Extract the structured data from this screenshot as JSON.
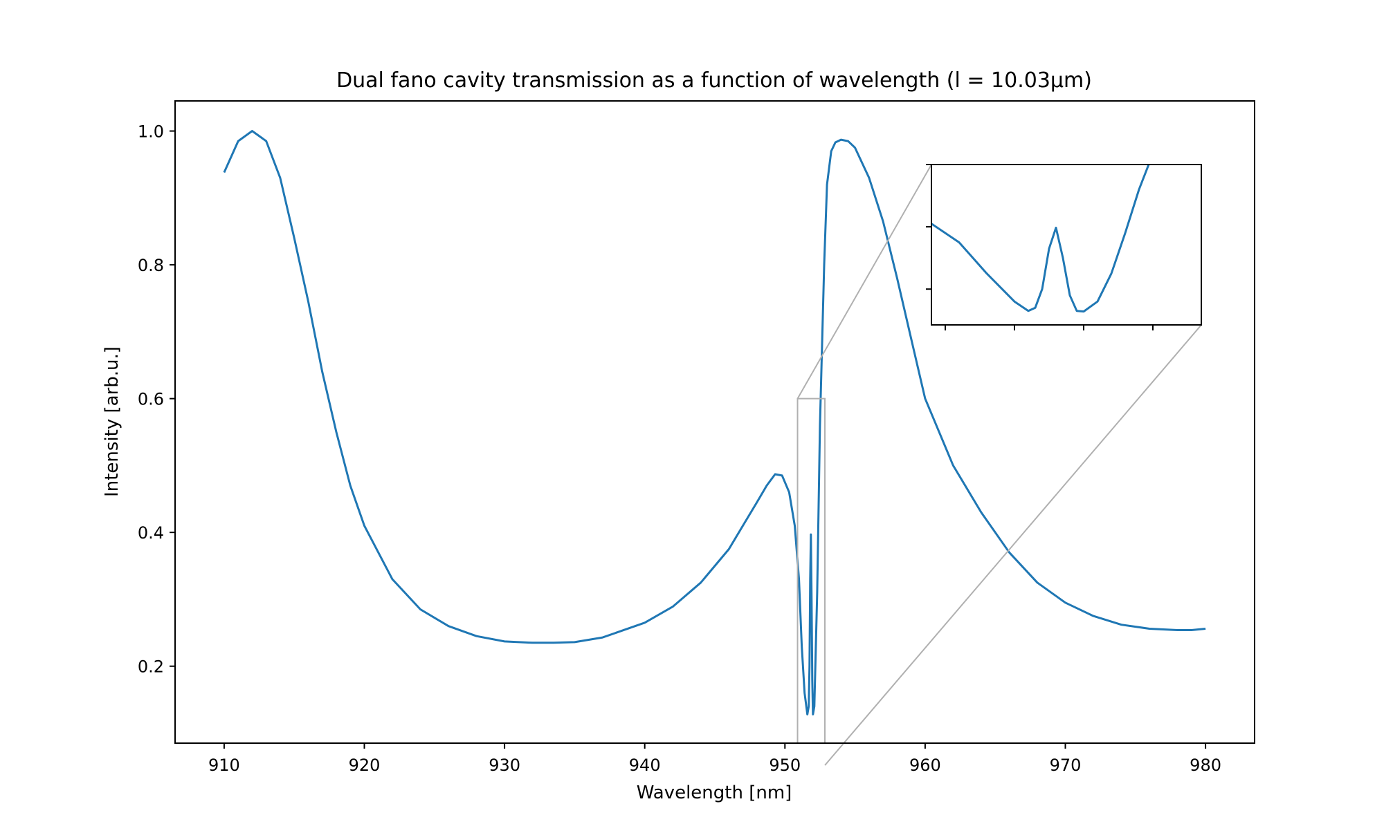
{
  "chart_data": {
    "type": "line",
    "title": "Dual fano cavity transmission as a function of wavelength (l = 10.03µm)",
    "xlabel": "Wavelength [nm]",
    "ylabel": "Intensity [arb.u.]",
    "xlim": [
      906.5,
      983.5
    ],
    "ylim": [
      0.085,
      1.045
    ],
    "xticks": [
      910,
      920,
      930,
      940,
      950,
      960,
      970,
      980
    ],
    "yticks": [
      0.2,
      0.4,
      0.6,
      0.8,
      1.0
    ],
    "xtick_labels": [
      "910",
      "920",
      "930",
      "940",
      "950",
      "960",
      "970",
      "980"
    ],
    "ytick_labels": [
      "0.2",
      "0.4",
      "0.6",
      "0.8",
      "1.0"
    ],
    "grid": false,
    "legend": "none",
    "series": [
      {
        "color": "#1f77b4",
        "x": [
          910,
          911,
          912,
          913,
          914,
          915,
          916,
          917,
          918,
          919,
          920,
          922,
          924,
          926,
          928,
          930,
          932,
          933.5,
          935,
          937,
          940,
          942,
          944,
          946,
          947,
          948,
          948.7,
          949.3,
          949.8,
          950.3,
          950.7,
          951.0,
          951.2,
          951.4,
          951.6,
          951.7,
          951.75,
          951.8,
          951.85,
          951.9,
          951.95,
          952.0,
          952.1,
          952.3,
          952.5,
          952.8,
          953.0,
          953.3,
          953.6,
          954.0,
          954.5,
          955.0,
          956,
          957,
          958,
          959,
          960,
          962,
          964,
          966,
          968,
          970,
          972,
          974,
          976,
          978,
          979,
          980
        ],
        "y": [
          0.938,
          0.985,
          1.0,
          0.985,
          0.93,
          0.84,
          0.745,
          0.64,
          0.55,
          0.47,
          0.41,
          0.33,
          0.285,
          0.26,
          0.245,
          0.237,
          0.235,
          0.235,
          0.236,
          0.243,
          0.265,
          0.289,
          0.325,
          0.375,
          0.41,
          0.445,
          0.47,
          0.487,
          0.485,
          0.46,
          0.41,
          0.33,
          0.23,
          0.16,
          0.128,
          0.14,
          0.2,
          0.33,
          0.397,
          0.3,
          0.18,
          0.128,
          0.14,
          0.31,
          0.56,
          0.8,
          0.92,
          0.97,
          0.983,
          0.987,
          0.985,
          0.975,
          0.93,
          0.865,
          0.78,
          0.69,
          0.6,
          0.5,
          0.43,
          0.37,
          0.325,
          0.295,
          0.275,
          0.262,
          0.256,
          0.254,
          0.254,
          0.256
        ]
      }
    ],
    "inset": {
      "xlim": [
        950.9,
        952.85
      ],
      "ylim": [
        0.085,
        0.6
      ],
      "x": [
        950.9,
        951.1,
        951.3,
        951.5,
        951.6,
        951.65,
        951.7,
        951.75,
        951.8,
        951.85,
        951.9,
        951.95,
        952.0,
        952.1,
        952.2,
        952.3,
        952.4,
        952.47,
        952.5
      ],
      "y": [
        0.41,
        0.35,
        0.25,
        0.16,
        0.13,
        0.14,
        0.2,
        0.33,
        0.397,
        0.3,
        0.18,
        0.13,
        0.128,
        0.16,
        0.25,
        0.38,
        0.52,
        0.6,
        0.63
      ]
    }
  }
}
